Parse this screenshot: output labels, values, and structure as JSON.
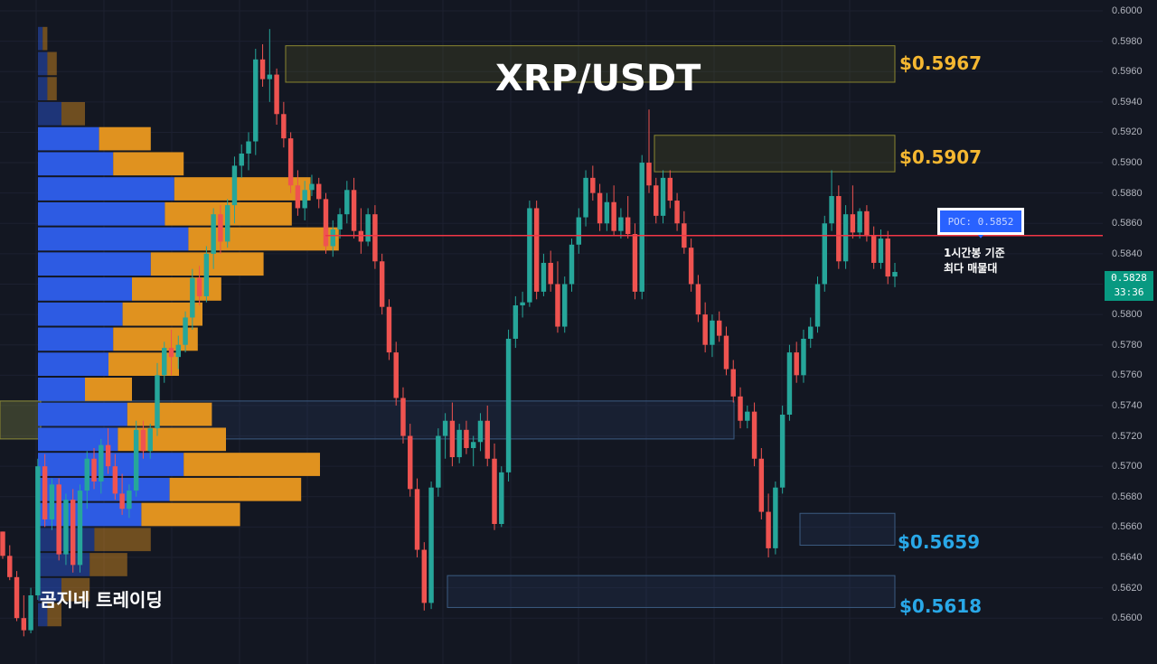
{
  "chart_data": {
    "type": "candlestick",
    "title": "XRP/USDT",
    "ylim": [
      0.559,
      0.6
    ],
    "y_ticks": [
      "0.6000",
      "0.5980",
      "0.5960",
      "0.5940",
      "0.5920",
      "0.5900",
      "0.5880",
      "0.5860",
      "0.5840",
      "0.5820",
      "0.5800",
      "0.5780",
      "0.5760",
      "0.5740",
      "0.5720",
      "0.5700",
      "0.5680",
      "0.5660",
      "0.5640",
      "0.5620",
      "0.5600"
    ],
    "grid": true,
    "colors": {
      "up": "#26a69a",
      "down": "#ef5350",
      "poc_line": "#f23645",
      "background": "#131722",
      "vp_buy": "#2962ff",
      "vp_sell": "#e8961a"
    },
    "candles_ohlc": [
      [
        0.5657,
        0.5657,
        0.5639,
        0.5641
      ],
      [
        0.5641,
        0.5648,
        0.5625,
        0.5627
      ],
      [
        0.5627,
        0.5631,
        0.5598,
        0.56
      ],
      [
        0.56,
        0.5615,
        0.5588,
        0.5592
      ],
      [
        0.5592,
        0.562,
        0.559,
        0.5615
      ],
      [
        0.5615,
        0.5705,
        0.5612,
        0.57
      ],
      [
        0.57,
        0.5708,
        0.566,
        0.5665
      ],
      [
        0.5665,
        0.5692,
        0.5658,
        0.5688
      ],
      [
        0.5688,
        0.5692,
        0.5638,
        0.5642
      ],
      [
        0.5642,
        0.5682,
        0.5635,
        0.5678
      ],
      [
        0.5678,
        0.5685,
        0.563,
        0.5635
      ],
      [
        0.5635,
        0.5688,
        0.563,
        0.5684
      ],
      [
        0.5684,
        0.571,
        0.5672,
        0.5705
      ],
      [
        0.5705,
        0.5712,
        0.5685,
        0.569
      ],
      [
        0.569,
        0.5718,
        0.5682,
        0.5714
      ],
      [
        0.5714,
        0.5725,
        0.5695,
        0.57
      ],
      [
        0.57,
        0.5708,
        0.5678,
        0.5682
      ],
      [
        0.5682,
        0.5695,
        0.5668,
        0.5672
      ],
      [
        0.5672,
        0.5688,
        0.5666,
        0.5684
      ],
      [
        0.5684,
        0.573,
        0.568,
        0.5724
      ],
      [
        0.5724,
        0.573,
        0.5705,
        0.571
      ],
      [
        0.571,
        0.5728,
        0.5705,
        0.5725
      ],
      [
        0.5725,
        0.5768,
        0.572,
        0.576
      ],
      [
        0.576,
        0.5782,
        0.5755,
        0.5778
      ],
      [
        0.5778,
        0.579,
        0.576,
        0.5772
      ],
      [
        0.5772,
        0.5786,
        0.5764,
        0.578
      ],
      [
        0.578,
        0.5802,
        0.5775,
        0.5798
      ],
      [
        0.5798,
        0.583,
        0.579,
        0.5824
      ],
      [
        0.5824,
        0.5832,
        0.5806,
        0.5812
      ],
      [
        0.5812,
        0.5845,
        0.5808,
        0.584
      ],
      [
        0.584,
        0.587,
        0.583,
        0.5866
      ],
      [
        0.5866,
        0.5872,
        0.584,
        0.5848
      ],
      [
        0.5848,
        0.5876,
        0.5844,
        0.5872
      ],
      [
        0.5872,
        0.5904,
        0.586,
        0.5898
      ],
      [
        0.5898,
        0.5912,
        0.589,
        0.5906
      ],
      [
        0.5906,
        0.592,
        0.5895,
        0.5914
      ],
      [
        0.5914,
        0.5975,
        0.5905,
        0.5968
      ],
      [
        0.5968,
        0.5978,
        0.595,
        0.5955
      ],
      [
        0.5955,
        0.5988,
        0.594,
        0.5958
      ],
      [
        0.5958,
        0.5962,
        0.5925,
        0.5932
      ],
      [
        0.5932,
        0.594,
        0.591,
        0.5916
      ],
      [
        0.5916,
        0.592,
        0.588,
        0.5885
      ],
      [
        0.5885,
        0.5895,
        0.5865,
        0.587
      ],
      [
        0.587,
        0.5888,
        0.5862,
        0.5882
      ],
      [
        0.5882,
        0.5892,
        0.5878,
        0.5886
      ],
      [
        0.5886,
        0.589,
        0.587,
        0.5876
      ],
      [
        0.5876,
        0.588,
        0.584,
        0.5845
      ],
      [
        0.5845,
        0.5862,
        0.5838,
        0.5856
      ],
      [
        0.5856,
        0.587,
        0.585,
        0.5866
      ],
      [
        0.5866,
        0.5888,
        0.586,
        0.5882
      ],
      [
        0.5882,
        0.589,
        0.585,
        0.5855
      ],
      [
        0.5855,
        0.587,
        0.584,
        0.5848
      ],
      [
        0.5848,
        0.587,
        0.5845,
        0.5866
      ],
      [
        0.5866,
        0.5872,
        0.583,
        0.5835
      ],
      [
        0.5835,
        0.584,
        0.58,
        0.5805
      ],
      [
        0.5805,
        0.581,
        0.577,
        0.5775
      ],
      [
        0.5775,
        0.5782,
        0.574,
        0.5745
      ],
      [
        0.5745,
        0.5752,
        0.5715,
        0.572
      ],
      [
        0.572,
        0.5728,
        0.568,
        0.5685
      ],
      [
        0.5685,
        0.5692,
        0.564,
        0.5645
      ],
      [
        0.5645,
        0.565,
        0.5605,
        0.561
      ],
      [
        0.561,
        0.569,
        0.5606,
        0.5686
      ],
      [
        0.5686,
        0.5725,
        0.568,
        0.572
      ],
      [
        0.572,
        0.5735,
        0.5705,
        0.573
      ],
      [
        0.573,
        0.5742,
        0.57,
        0.5706
      ],
      [
        0.5706,
        0.5728,
        0.5702,
        0.5724
      ],
      [
        0.5724,
        0.573,
        0.5708,
        0.5712
      ],
      [
        0.5712,
        0.572,
        0.57,
        0.5716
      ],
      [
        0.5716,
        0.5735,
        0.571,
        0.573
      ],
      [
        0.573,
        0.574,
        0.57,
        0.5705
      ],
      [
        0.5705,
        0.5715,
        0.5658,
        0.5662
      ],
      [
        0.5662,
        0.57,
        0.566,
        0.5696
      ],
      [
        0.5696,
        0.579,
        0.569,
        0.5784
      ],
      [
        0.5784,
        0.5812,
        0.5778,
        0.5806
      ],
      [
        0.5806,
        0.5815,
        0.5798,
        0.5808
      ],
      [
        0.5808,
        0.5875,
        0.5805,
        0.587
      ],
      [
        0.587,
        0.5875,
        0.581,
        0.5815
      ],
      [
        0.5815,
        0.584,
        0.5812,
        0.5834
      ],
      [
        0.5834,
        0.5842,
        0.5815,
        0.582
      ],
      [
        0.582,
        0.5835,
        0.5788,
        0.5792
      ],
      [
        0.5792,
        0.5825,
        0.5788,
        0.582
      ],
      [
        0.582,
        0.585,
        0.5815,
        0.5846
      ],
      [
        0.5846,
        0.587,
        0.584,
        0.5864
      ],
      [
        0.5864,
        0.5895,
        0.5858,
        0.589
      ],
      [
        0.589,
        0.5898,
        0.5875,
        0.588
      ],
      [
        0.588,
        0.5886,
        0.5855,
        0.586
      ],
      [
        0.586,
        0.588,
        0.5855,
        0.5874
      ],
      [
        0.5874,
        0.5885,
        0.5852,
        0.5855
      ],
      [
        0.5855,
        0.587,
        0.585,
        0.5864
      ],
      [
        0.5864,
        0.5878,
        0.585,
        0.5853
      ],
      [
        0.5853,
        0.586,
        0.581,
        0.5815
      ],
      [
        0.5815,
        0.5905,
        0.581,
        0.59
      ],
      [
        0.59,
        0.5935,
        0.588,
        0.5885
      ],
      [
        0.5885,
        0.589,
        0.586,
        0.5865
      ],
      [
        0.5865,
        0.5895,
        0.586,
        0.589
      ],
      [
        0.589,
        0.5895,
        0.587,
        0.5875
      ],
      [
        0.5875,
        0.588,
        0.5855,
        0.586
      ],
      [
        0.586,
        0.5868,
        0.584,
        0.5844
      ],
      [
        0.5844,
        0.585,
        0.5815,
        0.582
      ],
      [
        0.582,
        0.5826,
        0.5795,
        0.58
      ],
      [
        0.58,
        0.5808,
        0.5775,
        0.578
      ],
      [
        0.578,
        0.58,
        0.5772,
        0.5796
      ],
      [
        0.5796,
        0.5802,
        0.5782,
        0.5786
      ],
      [
        0.5786,
        0.5792,
        0.576,
        0.5764
      ],
      [
        0.5764,
        0.577,
        0.5742,
        0.5746
      ],
      [
        0.5746,
        0.5752,
        0.5725,
        0.573
      ],
      [
        0.573,
        0.574,
        0.5725,
        0.5736
      ],
      [
        0.5736,
        0.5742,
        0.57,
        0.5705
      ],
      [
        0.5705,
        0.5712,
        0.5665,
        0.567
      ],
      [
        0.567,
        0.5682,
        0.564,
        0.5646
      ],
      [
        0.5646,
        0.569,
        0.5642,
        0.5686
      ],
      [
        0.5686,
        0.574,
        0.5682,
        0.5734
      ],
      [
        0.5734,
        0.578,
        0.573,
        0.5775
      ],
      [
        0.5775,
        0.5782,
        0.5755,
        0.576
      ],
      [
        0.576,
        0.579,
        0.5755,
        0.5784
      ],
      [
        0.5784,
        0.5798,
        0.5778,
        0.5792
      ],
      [
        0.5792,
        0.5825,
        0.5788,
        0.582
      ],
      [
        0.582,
        0.5865,
        0.5815,
        0.586
      ],
      [
        0.586,
        0.5895,
        0.5855,
        0.5878
      ],
      [
        0.5878,
        0.5885,
        0.583,
        0.5835
      ],
      [
        0.5835,
        0.5872,
        0.583,
        0.5866
      ],
      [
        0.5866,
        0.5885,
        0.585,
        0.5854
      ],
      [
        0.5854,
        0.587,
        0.585,
        0.5868
      ],
      [
        0.5868,
        0.5872,
        0.5848,
        0.5852
      ],
      [
        0.5852,
        0.5858,
        0.583,
        0.5834
      ],
      [
        0.5834,
        0.5856,
        0.583,
        0.585
      ],
      [
        0.585,
        0.5855,
        0.582,
        0.5825
      ],
      [
        0.5825,
        0.5834,
        0.5818,
        0.5828
      ]
    ],
    "volume_profile": {
      "top_price": 0.599,
      "row_height": 0.00165,
      "rows": [
        {
          "buy": 1,
          "sell": 1
        },
        {
          "buy": 2,
          "sell": 2
        },
        {
          "buy": 2,
          "sell": 2
        },
        {
          "buy": 5,
          "sell": 5
        },
        {
          "buy": 13,
          "sell": 11
        },
        {
          "buy": 16,
          "sell": 15
        },
        {
          "buy": 29,
          "sell": 29
        },
        {
          "buy": 27,
          "sell": 27
        },
        {
          "buy": 32,
          "sell": 32
        },
        {
          "buy": 24,
          "sell": 24
        },
        {
          "buy": 20,
          "sell": 19
        },
        {
          "buy": 18,
          "sell": 17
        },
        {
          "buy": 16,
          "sell": 18
        },
        {
          "buy": 15,
          "sell": 15
        },
        {
          "buy": 10,
          "sell": 10
        },
        {
          "buy": 19,
          "sell": 18
        },
        {
          "buy": 17,
          "sell": 23
        },
        {
          "buy": 31,
          "sell": 29
        },
        {
          "buy": 28,
          "sell": 28
        },
        {
          "buy": 22,
          "sell": 21
        },
        {
          "buy": 12,
          "sell": 12
        },
        {
          "buy": 11,
          "sell": 8
        },
        {
          "buy": 5,
          "sell": 6
        },
        {
          "buy": 2,
          "sell": 3
        }
      ]
    },
    "poc": {
      "price": 0.5852,
      "label": "POC: 0.5852",
      "note_line1": "1시간봉 기준",
      "note_line2": "최다 매물대"
    },
    "zones": [
      {
        "top": 0.5977,
        "bottom": 0.5953,
        "kind": "resistance",
        "label": "$0.5967"
      },
      {
        "top": 0.5918,
        "bottom": 0.5894,
        "kind": "resistance",
        "label": "$0.5907"
      },
      {
        "top": 0.5669,
        "bottom": 0.5648,
        "kind": "support",
        "label": "$0.5659"
      },
      {
        "top": 0.5628,
        "bottom": 0.5607,
        "kind": "support",
        "label": "$0.5618"
      },
      {
        "top": 0.5743,
        "bottom": 0.5718,
        "kind": "range",
        "label": ""
      }
    ],
    "last_price": {
      "value": "0.5828",
      "countdown": "33:36"
    }
  },
  "overlay": {
    "title": "XRP/USDT",
    "brand": "곰지네 트레이딩"
  }
}
